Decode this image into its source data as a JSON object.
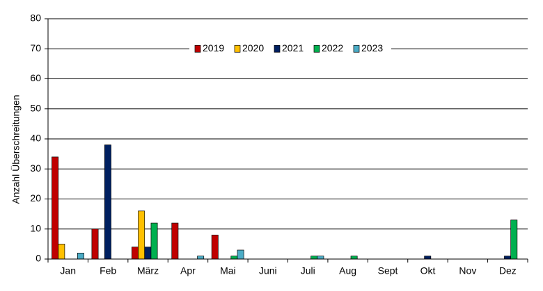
{
  "chart_data": {
    "type": "bar",
    "y_label": "Anzahl Überschreitungen",
    "categories": [
      "Jan",
      "Feb",
      "März",
      "Apr",
      "Mai",
      "Juni",
      "Juli",
      "Aug",
      "Sept",
      "Okt",
      "Nov",
      "Dez"
    ],
    "series": [
      {
        "name": "2019",
        "color": "#c00000",
        "values": [
          34,
          10,
          4,
          12,
          8,
          0,
          0,
          0,
          0,
          0,
          0,
          0
        ]
      },
      {
        "name": "2020",
        "color": "#ffc000",
        "values": [
          5,
          0,
          16,
          0,
          0,
          0,
          0,
          0,
          0,
          0,
          0,
          0
        ]
      },
      {
        "name": "2021",
        "color": "#002060",
        "values": [
          0,
          38,
          4,
          0,
          0,
          0,
          0,
          0,
          0,
          1,
          0,
          1
        ]
      },
      {
        "name": "2022",
        "color": "#00b050",
        "values": [
          0,
          0,
          12,
          0,
          1,
          0,
          1,
          1,
          0,
          0,
          0,
          13
        ]
      },
      {
        "name": "2023",
        "color": "#4bacc6",
        "values": [
          2,
          0,
          0,
          1,
          3,
          0,
          1,
          0,
          0,
          0,
          0,
          0
        ]
      }
    ],
    "ylim": [
      0,
      80
    ],
    "yticks": [
      0,
      10,
      20,
      30,
      40,
      50,
      60,
      70,
      80
    ],
    "grid": true,
    "legend": "top"
  }
}
